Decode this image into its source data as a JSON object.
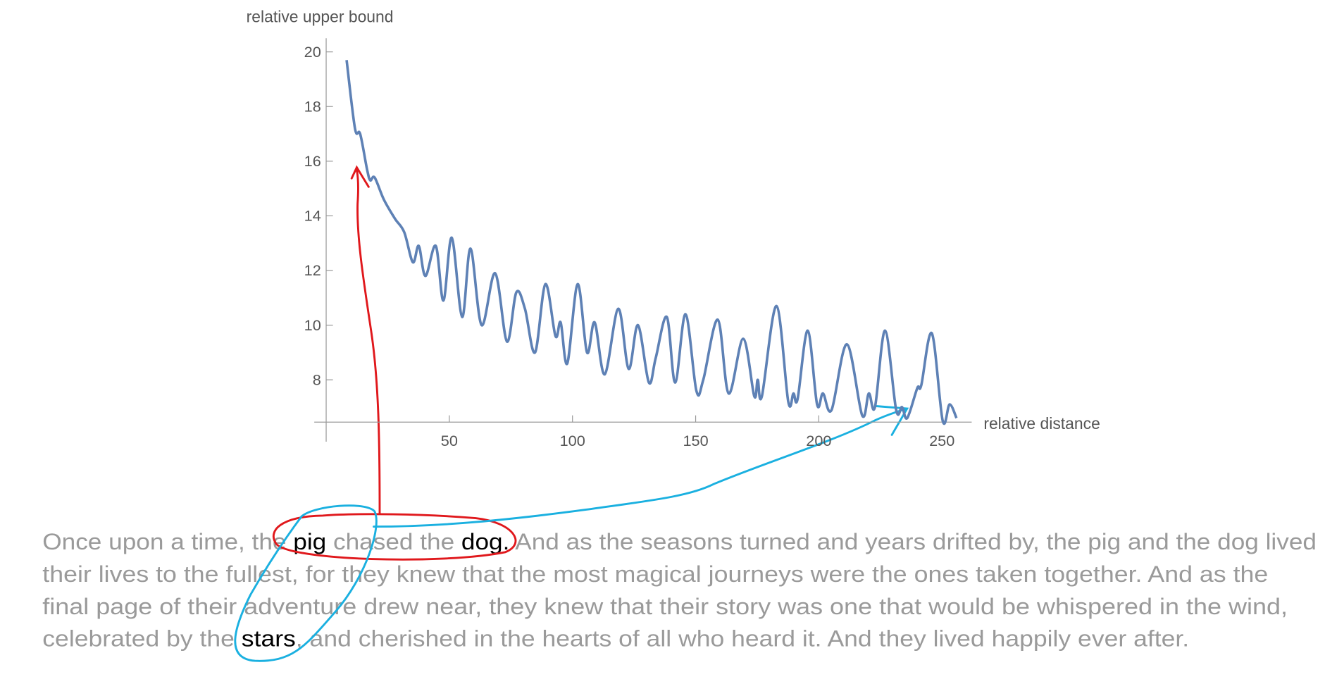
{
  "chart_data": {
    "type": "line",
    "x_label": "relative distance",
    "y_label": "relative upper bound",
    "xlim": [
      0,
      260
    ],
    "ylim": [
      6.45,
      20.5
    ],
    "xticks": [
      50,
      100,
      150,
      200,
      250
    ],
    "yticks": [
      8,
      10,
      12,
      14,
      16,
      18,
      20
    ],
    "color": "#5e81b5",
    "x": [
      8.3,
      11.7,
      13.8,
      16.6,
      17.9,
      19.7,
      23.4,
      27.9,
      31.7,
      35.2,
      37.6,
      40.3,
      44.5,
      47.6,
      51,
      55.2,
      58.6,
      63.1,
      68.6,
      73.4,
      77.2,
      80.7,
      84.8,
      89,
      93.1,
      95.2,
      97.9,
      102.1,
      105.9,
      109,
      113.1,
      118.6,
      122.8,
      126.6,
      131,
      133.8,
      138.3,
      141.7,
      145.9,
      150.3,
      153.1,
      159,
      163.4,
      169.3,
      173.8,
      175.2,
      176.9,
      182.8,
      187.6,
      189.7,
      191.4,
      195.5,
      199.3,
      201.7,
      205.2,
      211.4,
      217.6,
      220.3,
      222.8,
      226.9,
      231.4,
      233.8,
      235.9,
      240,
      241.6,
      245.9,
      250.3,
      253.1,
      255.9
    ],
    "values": [
      19.7,
      17.2,
      17.0,
      15.7,
      15.3,
      15.4,
      14.6,
      13.9,
      13.4,
      12.3,
      12.9,
      11.8,
      12.9,
      10.9,
      13.2,
      10.3,
      12.8,
      10.0,
      11.9,
      9.4,
      11.2,
      10.6,
      9.0,
      11.5,
      9.6,
      10.1,
      8.6,
      11.5,
      9.0,
      10.1,
      8.2,
      10.6,
      8.4,
      10.0,
      7.9,
      8.8,
      10.3,
      7.9,
      10.4,
      7.6,
      8.0,
      10.2,
      7.5,
      9.5,
      7.4,
      8.0,
      7.4,
      10.7,
      7.2,
      7.5,
      7.3,
      9.8,
      7.1,
      7.5,
      6.9,
      9.3,
      6.7,
      7.5,
      7.0,
      9.8,
      6.9,
      7.0,
      6.6,
      7.7,
      7.8,
      9.7,
      6.5,
      7.1,
      6.6
    ]
  },
  "story": {
    "lines": [
      [
        {
          "text": "Once upon a time, the "
        },
        {
          "text": "pig",
          "highlight": true
        },
        {
          "text": " chased the "
        },
        {
          "text": "dog.",
          "highlight": true
        },
        {
          "text": " And as the seasons turned and years drifted by, the pig and the dog lived"
        }
      ],
      [
        {
          "text": "their lives to the fullest, for they knew that the most magical journeys were the ones taken together. And as the"
        }
      ],
      [
        {
          "text": "final page of their adventure drew near, they knew that their story was one that would be whispered in the wind,"
        }
      ],
      [
        {
          "text": "celebrated by the "
        },
        {
          "text": "stars",
          "highlight": true
        },
        {
          "text": ", and cherished in the hearts of all who heard it. And they lived happily ever after."
        }
      ]
    ]
  }
}
